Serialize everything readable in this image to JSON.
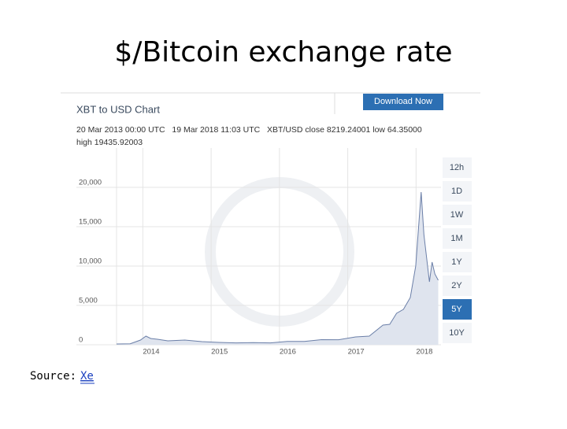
{
  "page": {
    "title": "$/Bitcoin exchange rate",
    "source_label": "Source:",
    "source_link": "Xe"
  },
  "widget": {
    "header": "XBT to USD Chart",
    "button": "Download Now",
    "info_line1": "20 Mar 2013 00:00 UTC   19 Mar 2018 11:03 UTC   XBT/USD close 8219.24001 low 64.35000",
    "info_line2": "high 19435.92003",
    "ranges": [
      "12h",
      "1D",
      "1W",
      "1M",
      "1Y",
      "2Y",
      "5Y",
      "10Y"
    ],
    "selected_range": "5Y"
  },
  "chart_data": {
    "type": "line",
    "color": "#6b7fa8",
    "grid": true,
    "x": [
      2013.5,
      2013.7,
      2013.85,
      2013.93,
      2014.0,
      2014.1,
      2014.25,
      2014.5,
      2014.75,
      2015.0,
      2015.25,
      2015.5,
      2015.75,
      2016.0,
      2016.25,
      2016.5,
      2016.75,
      2017.0,
      2017.2,
      2017.4,
      2017.5,
      2017.6,
      2017.7,
      2017.8,
      2017.88,
      2017.96,
      2018.0,
      2018.08,
      2018.12,
      2018.16,
      2018.21
    ],
    "values": [
      100,
      130,
      600,
      1100,
      800,
      700,
      500,
      600,
      400,
      300,
      240,
      270,
      240,
      430,
      420,
      650,
      640,
      1000,
      1100,
      2500,
      2600,
      4000,
      4500,
      6000,
      10000,
      19400,
      14000,
      8000,
      10500,
      9000,
      8200
    ],
    "xlim": [
      2013.5,
      2018.25
    ],
    "ylim": [
      0,
      25000
    ],
    "xticks": [
      2014,
      2015,
      2016,
      2017,
      2018
    ],
    "yticks": [
      0,
      {
        "value": 5000,
        "label": "5,000"
      },
      {
        "value": 10000,
        "label": "10,000"
      },
      {
        "value": 15000,
        "label": "15,000"
      },
      {
        "value": 20000,
        "label": "20,000"
      }
    ]
  }
}
